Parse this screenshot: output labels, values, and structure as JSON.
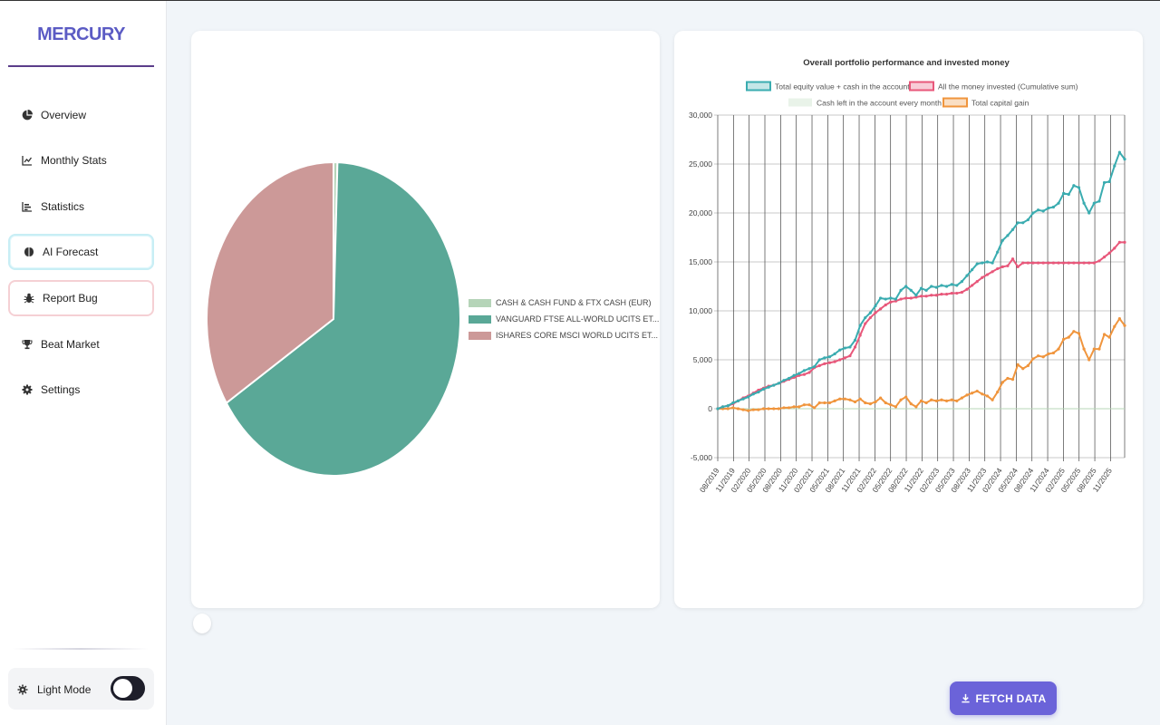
{
  "brand": "MERCURY",
  "nav": [
    {
      "label": "Overview",
      "icon": "pie-chart-icon"
    },
    {
      "label": "Monthly Stats",
      "icon": "line-chart-icon"
    },
    {
      "label": "Statistics",
      "icon": "bar-chart-icon"
    },
    {
      "label": "AI Forecast",
      "icon": "brain-icon"
    },
    {
      "label": "Report Bug",
      "icon": "bug-icon"
    },
    {
      "label": "Beat Market",
      "icon": "trophy-icon"
    },
    {
      "label": "Settings",
      "icon": "gear-icon"
    }
  ],
  "mode": {
    "label": "Light Mode",
    "enabled": true
  },
  "fetch_button": "FETCH DATA",
  "colors": {
    "brand": "#5b5bc4",
    "pie_cash": "#b5d4b8",
    "pie_vanguard": "#5aa897",
    "pie_ishares": "#cc9998",
    "equity": "#3aacb0",
    "invested": "#e8577a",
    "cash": "#b7d7b7",
    "gain": "#f0953d",
    "button": "#6b63d9"
  },
  "chart_data": [
    {
      "type": "pie",
      "title": "",
      "labels": [
        "CASH & CASH FUND & FTX CASH (EUR)",
        "VANGUARD FTSE ALL-WORLD UCITS ET...",
        "ISHARES CORE MSCI WORLD UCITS ET..."
      ],
      "values": [
        0.5,
        65.5,
        34.0
      ],
      "colors": [
        "#b5d4b8",
        "#5aa897",
        "#cc9998"
      ],
      "legend_position": "right"
    },
    {
      "type": "line",
      "title": "Overall portfolio performance and invested money",
      "xlabel": "",
      "ylabel": "",
      "ylim": [
        -5000,
        30000
      ],
      "y_ticks": [
        "30,000",
        "25,000",
        "20,000",
        "15,000",
        "10,000",
        "5,000",
        "0",
        "-5,000"
      ],
      "x_tick_labels": [
        "08/2019",
        "11/2019",
        "02/2020",
        "05/2020",
        "08/2020",
        "11/2020",
        "02/2021",
        "05/2021",
        "08/2021",
        "11/2021",
        "02/2022",
        "05/2022",
        "08/2022",
        "11/2022",
        "02/2023",
        "05/2023",
        "08/2023",
        "11/2023",
        "02/2024",
        "05/2024",
        "08/2024",
        "11/2024",
        "02/2025",
        "05/2025",
        "08/2025",
        "11/2025"
      ],
      "grid": true,
      "legend_position": "top",
      "series": [
        {
          "name": "Total equity value + cash in the account",
          "color": "#3aacb0",
          "values": [
            0,
            200,
            300,
            600,
            800,
            1000,
            1200,
            1500,
            1700,
            2000,
            2200,
            2400,
            2600,
            2900,
            3100,
            3400,
            3600,
            3900,
            4100,
            4300,
            5000,
            5200,
            5300,
            5600,
            6000,
            6200,
            6300,
            7000,
            8500,
            9300,
            9800,
            10500,
            11300,
            11200,
            11300,
            11200,
            12100,
            12500,
            12100,
            11600,
            12300,
            12100,
            12500,
            12400,
            12600,
            12500,
            12700,
            12600,
            13000,
            13600,
            14200,
            14800,
            14900,
            15000,
            14900,
            16000,
            17200,
            17700,
            18300,
            19000,
            19000,
            19300,
            20000,
            20300,
            20200,
            20500,
            20600,
            21000,
            22000,
            21900,
            22800,
            22600,
            21000,
            20000,
            21000,
            21200,
            23100,
            23200,
            24800,
            26200,
            25500
          ]
        },
        {
          "name": "All the money invested (Cumulative sum)",
          "color": "#e8577a",
          "values": [
            0,
            200,
            300,
            500,
            800,
            1100,
            1300,
            1600,
            1900,
            2100,
            2300,
            2400,
            2600,
            2800,
            3000,
            3200,
            3400,
            3500,
            3700,
            4200,
            4400,
            4600,
            4700,
            4800,
            5000,
            5200,
            5400,
            6300,
            7500,
            8700,
            9300,
            9800,
            10200,
            10600,
            10900,
            11000,
            11200,
            11300,
            11300,
            11400,
            11500,
            11500,
            11600,
            11600,
            11700,
            11700,
            11800,
            11800,
            11900,
            12200,
            12600,
            13000,
            13400,
            13700,
            14000,
            14300,
            14500,
            14600,
            15300,
            14500,
            14900,
            14900,
            14900,
            14900,
            14900,
            14900,
            14900,
            14900,
            14900,
            14900,
            14900,
            14900,
            14900,
            14900,
            14900,
            15100,
            15500,
            15900,
            16400,
            17000,
            17000
          ]
        },
        {
          "name": "Cash left in the account every month",
          "color": "#b7d7b7",
          "values": [
            0,
            0,
            0,
            0,
            0,
            0,
            0,
            0,
            0,
            0,
            0,
            0,
            0,
            0,
            0,
            0,
            0,
            0,
            0,
            0,
            0,
            0,
            0,
            0,
            0,
            0,
            0,
            0,
            0,
            0,
            0,
            0,
            0,
            0,
            0,
            0,
            0,
            0,
            0,
            0,
            0,
            0,
            0,
            0,
            0,
            0,
            0,
            0,
            0,
            0,
            0,
            0,
            0,
            0,
            0,
            0,
            0,
            0,
            0,
            0,
            0,
            0,
            0,
            0,
            0,
            0,
            0,
            0,
            0,
            0,
            0,
            0,
            0,
            0,
            0,
            0,
            0,
            0,
            0,
            0,
            0
          ]
        },
        {
          "name": "Total capital gain",
          "color": "#f0953d",
          "values": [
            0,
            0,
            0,
            100,
            0,
            -100,
            -200,
            -100,
            -100,
            0,
            0,
            0,
            0,
            100,
            100,
            200,
            200,
            400,
            400,
            100,
            600,
            600,
            600,
            800,
            1000,
            1000,
            900,
            700,
            1000,
            600,
            500,
            700,
            1100,
            600,
            400,
            200,
            900,
            1200,
            500,
            200,
            800,
            600,
            900,
            800,
            900,
            800,
            900,
            800,
            1100,
            1400,
            1600,
            1800,
            1500,
            1300,
            900,
            1700,
            2700,
            3100,
            3000,
            4500,
            4100,
            4400,
            5100,
            5400,
            5300,
            5600,
            5700,
            6100,
            7100,
            7300,
            7900,
            7700,
            6100,
            5000,
            6100,
            6100,
            7600,
            7300,
            8400,
            9200,
            8500
          ]
        }
      ]
    }
  ]
}
